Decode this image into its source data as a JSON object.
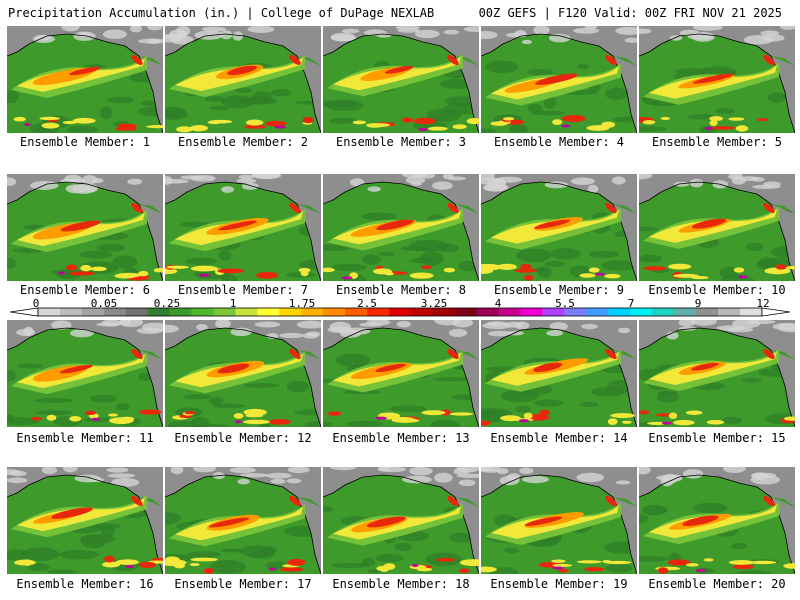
{
  "header": {
    "left": "Precipitation Accumulation (in.) | College of DuPage NEXLAB",
    "right": "00Z GEFS | F120 Valid: 00Z FRI NOV 21 2025"
  },
  "members": [
    "Ensemble Member: 1",
    "Ensemble Member: 2",
    "Ensemble Member: 3",
    "Ensemble Member: 4",
    "Ensemble Member: 5",
    "Ensemble Member: 6",
    "Ensemble Member: 7",
    "Ensemble Member: 8",
    "Ensemble Member: 9",
    "Ensemble Member: 10",
    "Ensemble Member: 11",
    "Ensemble Member: 12",
    "Ensemble Member: 13",
    "Ensemble Member: 14",
    "Ensemble Member: 15",
    "Ensemble Member: 16",
    "Ensemble Member: 17",
    "Ensemble Member: 18",
    "Ensemble Member: 19",
    "Ensemble Member: 20"
  ],
  "legend": {
    "ticks": [
      "0",
      "0.05",
      "0.25",
      "1",
      "1.75",
      "2.5",
      "3.25",
      "4",
      "5.5",
      "7",
      "9",
      "12"
    ],
    "colors": [
      "#d6d6d6",
      "#bdbdbd",
      "#a3a3a3",
      "#8a8a8a",
      "#727272",
      "#2f7f2f",
      "#3a9a2f",
      "#52b52e",
      "#7cc63a",
      "#c8e23c",
      "#ffff33",
      "#ffd700",
      "#ffb000",
      "#ff8c00",
      "#ff5e00",
      "#f52a00",
      "#e00000",
      "#c00000",
      "#9e0000",
      "#7d0018",
      "#a0005a",
      "#c8008c",
      "#ee00d0",
      "#b040ff",
      "#7d7dff",
      "#3fa0ff",
      "#00d0ff",
      "#00f0f0",
      "#20d0c0",
      "#60b0a8",
      "#909090",
      "#b8b8b8",
      "#dedede"
    ]
  },
  "map_colors": {
    "ocean_green": "#3f9a2c",
    "dark_green": "#2e7d26",
    "light_green": "#7cc63a",
    "yellow": "#f2e83a",
    "orange": "#ff9d00",
    "red": "#e8280c",
    "magenta": "#c0009c",
    "land_gray": "#8e8e8e",
    "land_light": "#d4d4d4"
  }
}
